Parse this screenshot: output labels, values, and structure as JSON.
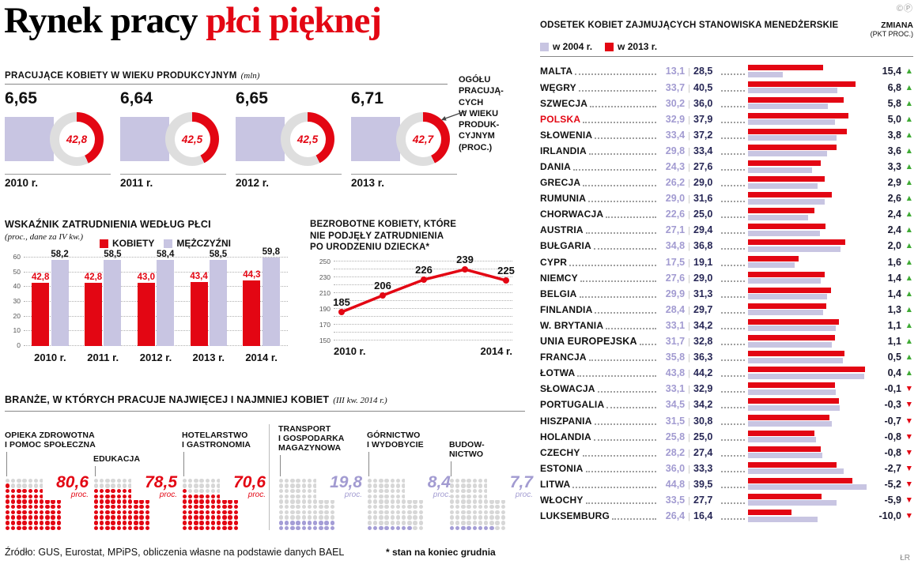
{
  "page": {
    "copyright": "©Ⓟ",
    "title_black": "Rynek pracy",
    "title_red": " płci pięknej",
    "source": "Źródło: GUS, Eurostat, MPiPS, obliczenia własne na podstawie danych BAEL",
    "footnote": "* stan na koniec grudnia",
    "credit": "ŁR"
  },
  "colors": {
    "red": "#e30613",
    "lavender": "#c8c5e2",
    "lavender_text": "#a29bd1",
    "lavender_dot": "#a49dd6",
    "navy": "#262655",
    "green": "#3faa35",
    "gray_dot": "#d7d7d7",
    "gray_light": "#dedede"
  },
  "chart_data": [
    {
      "id": "working_women",
      "type": "pie",
      "title": "PRACUJĄCE KOBIETY W WIEKU PRODUKCYJNYM",
      "unit": "(mln)",
      "note_lines": [
        "OGÓŁU",
        "PRACUJĄ-",
        "CYCH",
        "W WIEKU",
        "PRODUK-",
        "CYJNYM",
        "(PROC.)"
      ],
      "items": [
        {
          "year": "2010 r.",
          "value": "6,65",
          "pct": 42.8,
          "pct_label": "42,8"
        },
        {
          "year": "2011 r.",
          "value": "6,64",
          "pct": 42.5,
          "pct_label": "42,5"
        },
        {
          "year": "2012 r.",
          "value": "6,65",
          "pct": 42.5,
          "pct_label": "42,5"
        },
        {
          "year": "2013 r.",
          "value": "6,71",
          "pct": 42.7,
          "pct_label": "42,7"
        }
      ]
    },
    {
      "id": "employment_rate",
      "type": "bar",
      "title": "WSKAŹNIK ZATRUDNIENIA WEDŁUG PŁCI",
      "subtitle": "(proc., dane za IV kw.)",
      "categories": [
        "2010 r.",
        "2011 r.",
        "2012 r.",
        "2013 r.",
        "2014 r."
      ],
      "series": [
        {
          "name": "KOBIETY",
          "color_key": "red",
          "values": [
            42.8,
            42.8,
            43.0,
            43.4,
            44.3
          ],
          "labels": [
            "42,8",
            "42,8",
            "43,0",
            "43,4",
            "44,3"
          ]
        },
        {
          "name": "MĘŻCZYŹNI",
          "color_key": "lavender",
          "values": [
            58.2,
            58.5,
            58.4,
            58.5,
            59.8
          ],
          "labels": [
            "58,2",
            "58,5",
            "58,4",
            "58,5",
            "59,8"
          ]
        }
      ],
      "yticks": [
        60,
        50,
        40,
        30,
        20,
        10,
        0
      ],
      "ylim": [
        0,
        60
      ]
    },
    {
      "id": "unemployed_mothers",
      "type": "line",
      "title_lines": [
        "BEZROBOTNE KOBIETY, KTÓRE",
        "NIE PODJĘŁY ZATRUDNIENIA",
        "PO URODZENIU DZIECKA*"
      ],
      "x_labels": [
        "2010 r.",
        "2014 r."
      ],
      "values": [
        185,
        206,
        226,
        239,
        225
      ],
      "yticks": [
        250,
        230,
        210,
        190,
        170,
        150
      ],
      "ylim": [
        150,
        250
      ]
    },
    {
      "id": "industries",
      "type": "dot-matrix",
      "title": "BRANŻE, W KTÓRYCH PRACUJE NAJWIĘCEJ I NAJMNIEJ KOBIET",
      "subtitle": "(III kw. 2014 r.)",
      "unit": "proc.",
      "items": [
        {
          "label_lines": [
            "OPIEKA ZDROWOTNA",
            "I POMOC SPOŁECZNA"
          ],
          "value": 80.6,
          "value_label": "80,6",
          "color_key": "red"
        },
        {
          "label_lines": [
            "EDUKACJA"
          ],
          "value": 78.5,
          "value_label": "78,5",
          "color_key": "red"
        },
        {
          "label_lines": [
            "HOTELARSTWO",
            "I GASTRONOMIA"
          ],
          "value": 70.6,
          "value_label": "70,6",
          "color_key": "red"
        },
        {
          "label_lines": [
            "TRANSPORT",
            "I GOSPODARKA",
            "MAGAZYNOWA"
          ],
          "value": 19.8,
          "value_label": "19,8",
          "color_key": "lavender"
        },
        {
          "label_lines": [
            "GÓRNICTWO",
            "I WYDOBYCIE"
          ],
          "value": 8.4,
          "value_label": "8,4",
          "color_key": "lavender"
        },
        {
          "label_lines": [
            "BUDOW-",
            "NICTWO"
          ],
          "value": 7.7,
          "value_label": "7,7",
          "color_key": "lavender"
        }
      ]
    },
    {
      "id": "female_managers",
      "type": "bar",
      "title": "ODSETEK KOBIET ZAJMUJĄCYCH STANOWISKA MENEDŻERSKIE",
      "change_header_lines": [
        "ZMIANA",
        "(PKT PROC.)"
      ],
      "legend": [
        {
          "label": "w 2004 r.",
          "color_key": "lavender"
        },
        {
          "label": "w 2013 r.",
          "color_key": "red"
        }
      ],
      "xlim": [
        0,
        46
      ],
      "rows": [
        {
          "country": "MALTA",
          "y2004": "13,1",
          "y2013": "28,5",
          "change": "15,4"
        },
        {
          "country": "WĘGRY",
          "y2004": "33,7",
          "y2013": "40,5",
          "change": "6,8"
        },
        {
          "country": "SZWECJA",
          "y2004": "30,2",
          "y2013": "36,0",
          "change": "5,8"
        },
        {
          "country": "POLSKA",
          "y2004": "32,9",
          "y2013": "37,9",
          "change": "5,0",
          "highlight": true
        },
        {
          "country": "SŁOWENIA",
          "y2004": "33,4",
          "y2013": "37,2",
          "change": "3,8"
        },
        {
          "country": "IRLANDIA",
          "y2004": "29,8",
          "y2013": "33,4",
          "change": "3,6"
        },
        {
          "country": "DANIA",
          "y2004": "24,3",
          "y2013": "27,6",
          "change": "3,3"
        },
        {
          "country": "GRECJA",
          "y2004": "26,2",
          "y2013": "29,0",
          "change": "2,9"
        },
        {
          "country": "RUMUNIA",
          "y2004": "29,0",
          "y2013": "31,6",
          "change": "2,6"
        },
        {
          "country": "CHORWACJA",
          "y2004": "22,6",
          "y2013": "25,0",
          "change": "2,4"
        },
        {
          "country": "AUSTRIA",
          "y2004": "27,1",
          "y2013": "29,4",
          "change": "2,4"
        },
        {
          "country": "BUŁGARIA",
          "y2004": "34,8",
          "y2013": "36,8",
          "change": "2,0"
        },
        {
          "country": "CYPR",
          "y2004": "17,5",
          "y2013": "19,1",
          "change": "1,6"
        },
        {
          "country": "NIEMCY",
          "y2004": "27,6",
          "y2013": "29,0",
          "change": "1,4"
        },
        {
          "country": "BELGIA",
          "y2004": "29,9",
          "y2013": "31,3",
          "change": "1,4"
        },
        {
          "country": "FINLANDIA",
          "y2004": "28,4",
          "y2013": "29,7",
          "change": "1,3"
        },
        {
          "country": "W. BRYTANIA",
          "y2004": "33,1",
          "y2013": "34,2",
          "change": "1,1"
        },
        {
          "country": "UNIA EUROPEJSKA",
          "y2004": "31,7",
          "y2013": "32,8",
          "change": "1,1",
          "emph": true
        },
        {
          "country": "FRANCJA",
          "y2004": "35,8",
          "y2013": "36,3",
          "change": "0,5"
        },
        {
          "country": "ŁOTWA",
          "y2004": "43,8",
          "y2013": "44,2",
          "change": "0,4"
        },
        {
          "country": "SŁOWACJA",
          "y2004": "33,1",
          "y2013": "32,9",
          "change": "-0,1"
        },
        {
          "country": "PORTUGALIA",
          "y2004": "34,5",
          "y2013": "34,2",
          "change": "-0,3"
        },
        {
          "country": "HISZPANIA",
          "y2004": "31,5",
          "y2013": "30,8",
          "change": "-0,7"
        },
        {
          "country": "HOLANDIA",
          "y2004": "25,8",
          "y2013": "25,0",
          "change": "-0,8"
        },
        {
          "country": "CZECHY",
          "y2004": "28,2",
          "y2013": "27,4",
          "change": "-0,8"
        },
        {
          "country": "ESTONIA",
          "y2004": "36,0",
          "y2013": "33,3",
          "change": "-2,7"
        },
        {
          "country": "LITWA",
          "y2004": "44,8",
          "y2013": "39,5",
          "change": "-5,2"
        },
        {
          "country": "WŁOCHY",
          "y2004": "33,5",
          "y2013": "27,7",
          "change": "-5,9"
        },
        {
          "country": "LUKSEMBURG",
          "y2004": "26,4",
          "y2013": "16,4",
          "change": "-10,0"
        }
      ]
    }
  ]
}
